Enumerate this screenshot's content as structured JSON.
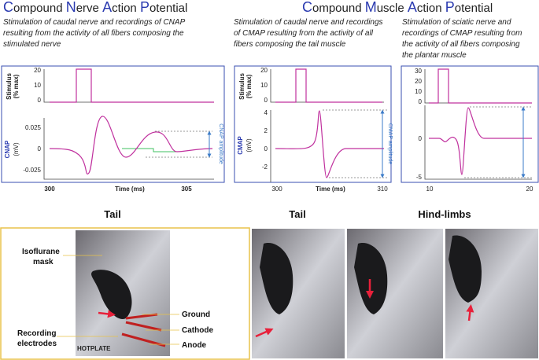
{
  "cnap": {
    "title": [
      "C",
      "ompound ",
      "N",
      "erve ",
      "A",
      "ction ",
      "P",
      "otential"
    ],
    "description": [
      "Stimulation of caudal nerve and recordings of CNAP",
      "resulting from the activity of all fibers composing the",
      "stimulated nerve"
    ]
  },
  "cmap": {
    "title": [
      "C",
      "ompound ",
      "M",
      "uscle ",
      "A",
      "ction ",
      "P",
      "otential"
    ],
    "description_tail": [
      "Stimulation of caudal nerve and recordings",
      "of CMAP resulting from the activity of all",
      "fibers composing the tail muscle"
    ],
    "description_hind": [
      "Stimulation of sciatic nerve and",
      "recordings of CMAP resulting from",
      "the activity of all fibers composing",
      "the plantar muscle"
    ]
  },
  "panels": [
    {
      "stim_label": [
        "Stimulus",
        "(% max)"
      ],
      "stim_ticks": [
        "20",
        "10",
        "0"
      ],
      "resp_label": [
        "CNAP",
        "(mV)"
      ],
      "resp_ticks": [
        "0.025",
        "0",
        "-0.025"
      ],
      "x_ticks": [
        "300",
        "305"
      ],
      "x_label": "Time (ms)",
      "amplitude": "CNAP amplitude"
    },
    {
      "stim_label": [
        "Stimulus",
        "(% max)"
      ],
      "stim_ticks": [
        "20",
        "10",
        "0"
      ],
      "resp_label": [
        "CMAP",
        "(mV)"
      ],
      "resp_ticks": [
        "4",
        "2",
        "0",
        "-2"
      ],
      "x_ticks": [
        "300",
        "310"
      ],
      "x_label": "Time (ms)",
      "amplitude": "CMAP amplitude"
    },
    {
      "stim_ticks": [
        "30",
        "20",
        "10",
        "0"
      ],
      "resp_ticks": [
        "0",
        "-5"
      ],
      "x_ticks": [
        "10",
        "20"
      ]
    }
  ],
  "photos": {
    "tail_left": "Tail",
    "tail_right": "Tail",
    "hind": "Hind-limbs",
    "labels": {
      "mask": [
        "Isoflurane",
        "mask"
      ],
      "ground": "Ground",
      "cathode": "Cathode",
      "anode": "Anode",
      "recording": [
        "Recording",
        "electrodes"
      ],
      "hotplate": "HOTPLATE"
    }
  }
}
